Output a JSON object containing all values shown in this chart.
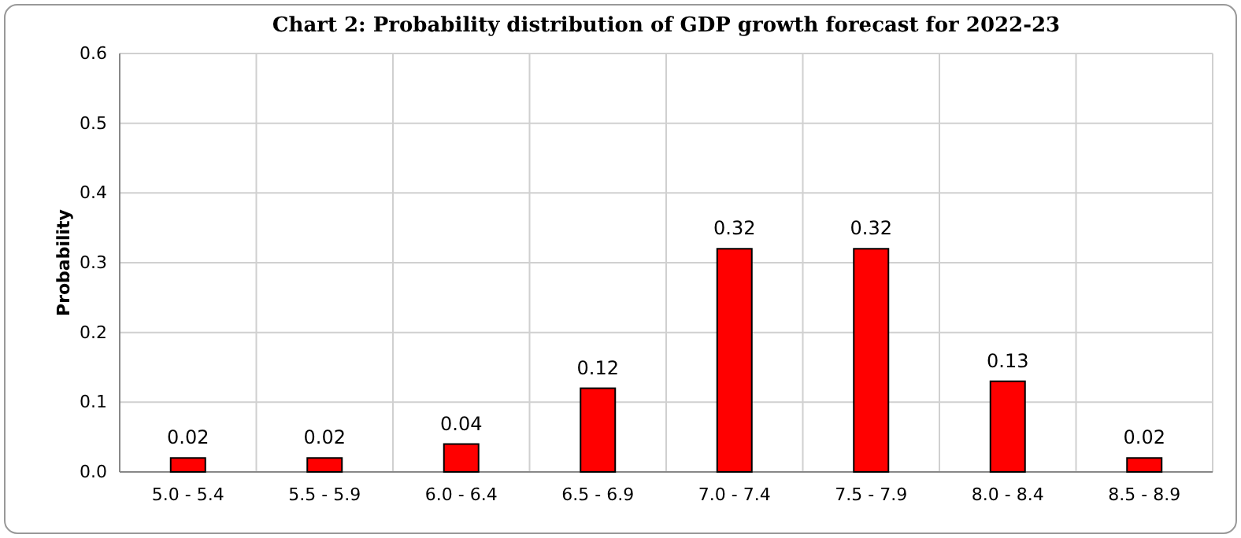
{
  "chart_data": {
    "type": "bar",
    "title": "Chart 2: Probability distribution of  GDP growth forecast for 2022-23",
    "ylabel": "Probability",
    "categories": [
      "5.0 - 5.4",
      "5.5 - 5.9",
      "6.0 - 6.4",
      "6.5 - 6.9",
      "7.0 - 7.4",
      "7.5 - 7.9",
      "8.0 - 8.4",
      "8.5 - 8.9"
    ],
    "values": [
      0.02,
      0.02,
      0.04,
      0.12,
      0.32,
      0.32,
      0.13,
      0.02
    ],
    "color": "#ff0000",
    "data_labels": true,
    "grid": true,
    "ylim": [
      0,
      0.6
    ],
    "yticks": [
      {
        "value": 0,
        "label": "0.0"
      },
      {
        "value": 0.1,
        "label": "0.1"
      },
      {
        "value": 0.2,
        "label": "0.2"
      },
      {
        "value": 0.3,
        "label": "0.3"
      },
      {
        "value": 0.4,
        "label": "0.4"
      },
      {
        "value": 0.5,
        "label": "0.5"
      },
      {
        "value": 0.6,
        "label": "0.6"
      }
    ]
  }
}
